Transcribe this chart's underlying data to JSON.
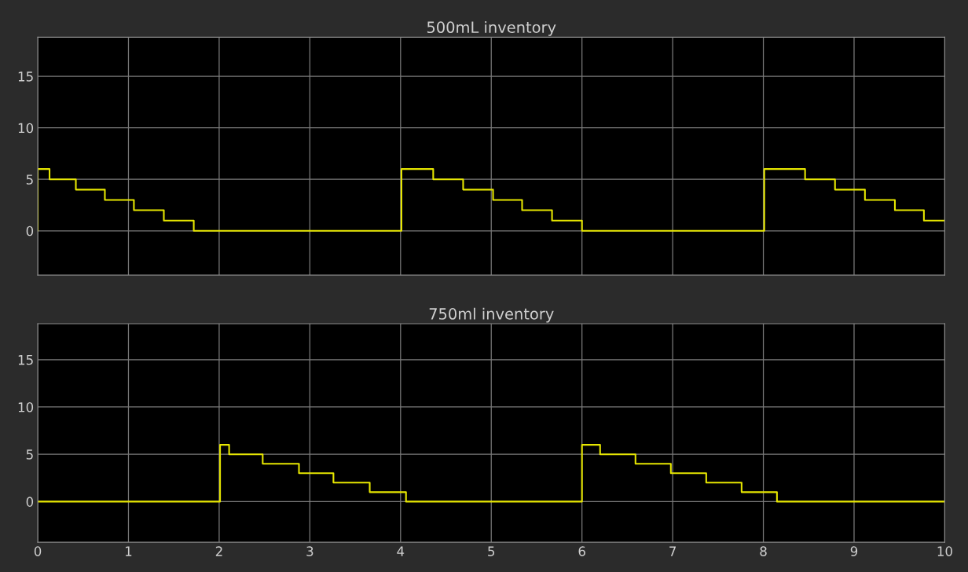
{
  "chart_data": [
    {
      "type": "step",
      "title": "500mL inventory",
      "xlim": [
        0,
        10
      ],
      "ylim": [
        -4.3,
        18.8
      ],
      "xticks": [
        0,
        1,
        2,
        3,
        4,
        5,
        6,
        7,
        8,
        9,
        10
      ],
      "yticks": [
        0,
        5,
        10,
        15
      ],
      "grid": true,
      "tick_labels": "y",
      "series": [
        {
          "color": "#e6e600",
          "x": [
            0,
            0,
            0.13,
            0.42,
            0.74,
            1.06,
            1.39,
            1.72,
            4.01,
            4.36,
            4.69,
            5.02,
            5.34,
            5.67,
            6.0,
            8.01,
            8.46,
            8.79,
            9.12,
            9.45,
            9.77,
            10
          ],
          "values": [
            0,
            6,
            5,
            4,
            3,
            2,
            1,
            0,
            6,
            5,
            4,
            3,
            2,
            1,
            0,
            6,
            5,
            4,
            3,
            2,
            1,
            1
          ]
        }
      ]
    },
    {
      "type": "step",
      "title": "750ml inventory",
      "xlim": [
        0,
        10
      ],
      "ylim": [
        -4.3,
        18.8
      ],
      "xticks": [
        0,
        1,
        2,
        3,
        4,
        5,
        6,
        7,
        8,
        9,
        10
      ],
      "yticks": [
        0,
        5,
        10,
        15
      ],
      "grid": true,
      "series": [
        {
          "color": "#e6e600",
          "x": [
            0,
            2.01,
            2.11,
            2.48,
            2.88,
            3.26,
            3.66,
            4.06,
            6.0,
            6.2,
            6.59,
            6.98,
            7.37,
            7.76,
            8.15,
            10
          ],
          "values": [
            0,
            6,
            5,
            4,
            3,
            2,
            1,
            0,
            6,
            5,
            4,
            3,
            2,
            1,
            0,
            0
          ]
        }
      ]
    }
  ]
}
